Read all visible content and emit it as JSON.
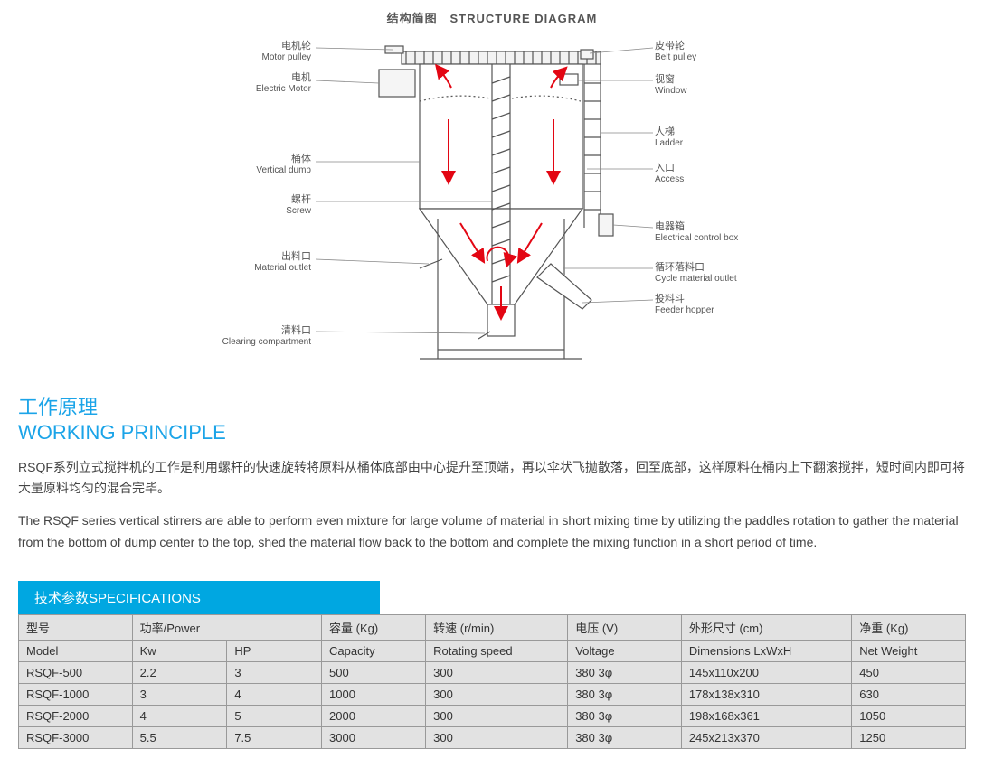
{
  "diagram": {
    "title_cn": "结构简图",
    "title_en": "STRUCTURE DIAGRAM",
    "left_labels": [
      {
        "cn": "电机轮",
        "en": "Motor pulley"
      },
      {
        "cn": "电机",
        "en": "Electric Motor"
      },
      {
        "cn": "桶体",
        "en": "Vertical dump"
      },
      {
        "cn": "螺杆",
        "en": "Screw"
      },
      {
        "cn": "出料口",
        "en": "Material outlet"
      },
      {
        "cn": "清料口",
        "en": "Clearing compartment"
      }
    ],
    "right_labels": [
      {
        "cn": "皮带轮",
        "en": "Belt pulley"
      },
      {
        "cn": "视窗",
        "en": "Window"
      },
      {
        "cn": "人梯",
        "en": "Ladder"
      },
      {
        "cn": "入口",
        "en": "Access"
      },
      {
        "cn": "电器箱",
        "en": "Electrical control box"
      },
      {
        "cn": "循环落料口",
        "en": "Cycle material outlet"
      },
      {
        "cn": "投料斗",
        "en": "Feeder hopper"
      }
    ],
    "colors": {
      "arrow": "#e30613",
      "line": "#555555",
      "machine_stroke": "#555555",
      "machine_fill": "#ffffff"
    }
  },
  "working_principle": {
    "heading_cn": "工作原理",
    "heading_en": "WORKING PRINCIPLE",
    "text_cn": "RSQF系列立式搅拌机的工作是利用螺杆的快速旋转将原料从桶体底部由中心提升至顶端，再以伞状飞抛散落，回至底部，这样原料在桶内上下翻滚搅拌，短时间内即可将大量原料均匀的混合完毕。",
    "text_en": "The RSQF series vertical stirrers are able to perform even mixture for large volume of material in short mixing time by utilizing the paddles rotation to gather the material from the bottom of dump center to the top, shed the material flow back to the bottom and complete the mixing function in a short period of time."
  },
  "spec_table": {
    "header_bar": "技术参数SPECIFICATIONS",
    "head1": {
      "model": "型号",
      "power": "功率/Power",
      "capacity": "容量 (Kg)",
      "speed": "转速 (r/min)",
      "voltage": "电压 (V)",
      "dims": "外形尺寸 (cm)",
      "net": "净重 (Kg)"
    },
    "head2": {
      "model": "Model",
      "kw": "Kw",
      "hp": "HP",
      "capacity": "Capacity",
      "speed": "Rotating speed",
      "voltage": "Voltage",
      "dims": "Dimensions LxWxH",
      "net": "Net Weight"
    },
    "rows": [
      {
        "model": "RSQF-500",
        "kw": "2.2",
        "hp": "3",
        "cap": "500",
        "rot": "300",
        "volt": "380 3φ",
        "dim": "145x110x200",
        "net": "450"
      },
      {
        "model": "RSQF-1000",
        "kw": "3",
        "hp": "4",
        "cap": "1000",
        "rot": "300",
        "volt": "380 3φ",
        "dim": "178x138x310",
        "net": "630"
      },
      {
        "model": "RSQF-2000",
        "kw": "4",
        "hp": "5",
        "cap": "2000",
        "rot": "300",
        "volt": "380 3φ",
        "dim": "198x168x361",
        "net": "1050"
      },
      {
        "model": "RSQF-3000",
        "kw": "5.5",
        "hp": "7.5",
        "cap": "3000",
        "rot": "300",
        "volt": "380 3φ",
        "dim": "245x213x370",
        "net": "1250"
      }
    ]
  },
  "style": {
    "accent_color": "#1ba4e8",
    "specbar_color": "#00a7e1",
    "table_bg": "#e2e2e2",
    "table_border": "#999999",
    "body_text_color": "#444444"
  }
}
